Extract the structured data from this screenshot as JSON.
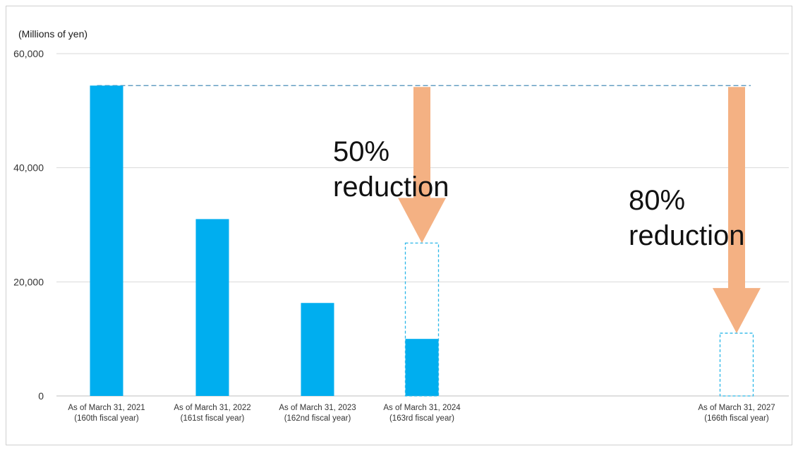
{
  "chart_data": {
    "type": "bar",
    "unit_label": "(Millions of yen)",
    "ylim": [
      0,
      60000
    ],
    "yticks": [
      0,
      20000,
      40000,
      60000
    ],
    "ytick_labels": [
      "0",
      "20,000",
      "40,000",
      "60,000"
    ],
    "grid": true,
    "categories": [
      {
        "line1": "As of March 31, 2021",
        "line2": "(160th fiscal year)"
      },
      {
        "line1": "As of March 31, 2022",
        "line2": "(161st fiscal year)"
      },
      {
        "line1": "As of March 31, 2023",
        "line2": "(162nd fiscal year)"
      },
      {
        "line1": "As of March 31, 2024",
        "line2": "(163rd fiscal year)"
      },
      {
        "line1": "As of March 31, 2027",
        "line2": "(166th fiscal year)"
      }
    ],
    "values": [
      54400,
      31000,
      16300,
      10000,
      null
    ],
    "targets": [
      {
        "category_index": 3,
        "value": 26800
      },
      {
        "category_index": 4,
        "value": 11000
      }
    ],
    "reference_line_value": 54400,
    "annotations": [
      {
        "category_index": 3,
        "line1": "50%",
        "line2": "reduction"
      },
      {
        "category_index": 4,
        "line1": "80%",
        "line2": "reduction"
      }
    ],
    "colors": {
      "bar": "#00AEEF",
      "target_outline": "#29B6E8",
      "reference_line": "#4A8DB7",
      "arrow": "#F4B183",
      "grid": "#D9D9D9"
    }
  }
}
